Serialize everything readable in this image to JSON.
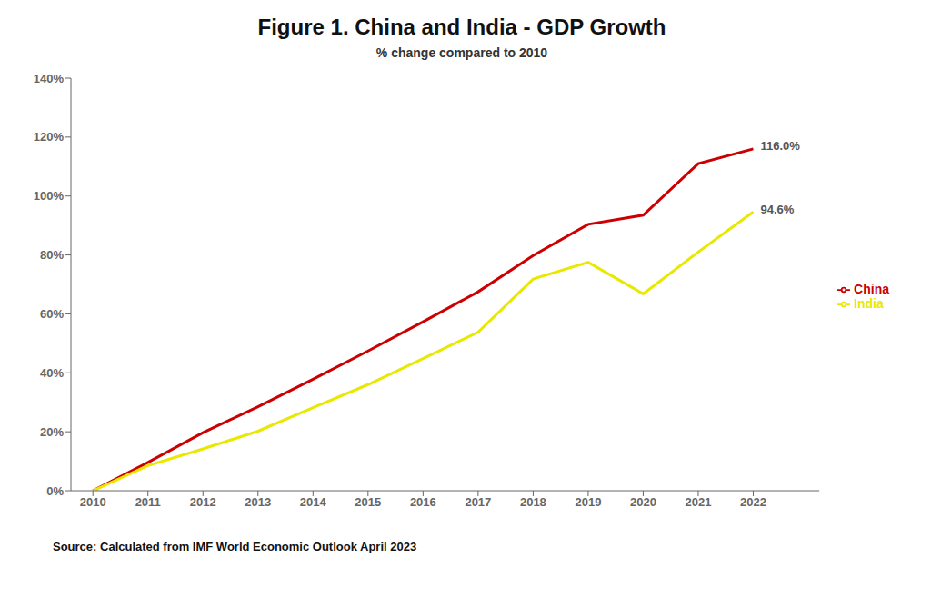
{
  "chart_data": {
    "type": "line",
    "title": "Figure 1.  China and India - GDP Growth",
    "subtitle": "% change compared to 2010",
    "source": "Source: Calculated from IMF World Economic Outlook April 2023",
    "x": [
      2010,
      2011,
      2012,
      2013,
      2014,
      2015,
      2016,
      2017,
      2018,
      2019,
      2020,
      2021,
      2022
    ],
    "series": [
      {
        "name": "China",
        "color": "#cc0000",
        "values": [
          0.0,
          9.6,
          19.7,
          28.5,
          37.8,
          47.4,
          57.3,
          67.5,
          79.8,
          90.4,
          93.5,
          111.0,
          116.0
        ]
      },
      {
        "name": "India",
        "color": "#e8e800",
        "values": [
          0.0,
          8.5,
          14.2,
          20.2,
          28.2,
          36.0,
          44.8,
          53.8,
          71.8,
          77.5,
          66.8,
          81.0,
          94.6
        ]
      }
    ],
    "annotations": [
      {
        "text": "116.0%",
        "x": 2022,
        "y": 116.0,
        "series": "China",
        "color": "#555555"
      },
      {
        "text": "94.6%",
        "x": 2022,
        "y": 94.6,
        "series": "India",
        "color": "#555555"
      }
    ],
    "xlim": [
      2009.6,
      2023.2
    ],
    "xticks": [
      2010,
      2011,
      2012,
      2013,
      2014,
      2015,
      2016,
      2017,
      2018,
      2019,
      2020,
      2021,
      2022
    ],
    "ylim": [
      0,
      140
    ],
    "yticks": [
      {
        "value": 0,
        "label": "0%"
      },
      {
        "value": 20,
        "label": "20%"
      },
      {
        "value": 40,
        "label": "40%"
      },
      {
        "value": 60,
        "label": "60%"
      },
      {
        "value": 80,
        "label": "80%"
      },
      {
        "value": 100,
        "label": "100%"
      },
      {
        "value": 120,
        "label": "120%"
      },
      {
        "value": 140,
        "label": "140%"
      }
    ],
    "grid": false,
    "legend": "right"
  }
}
